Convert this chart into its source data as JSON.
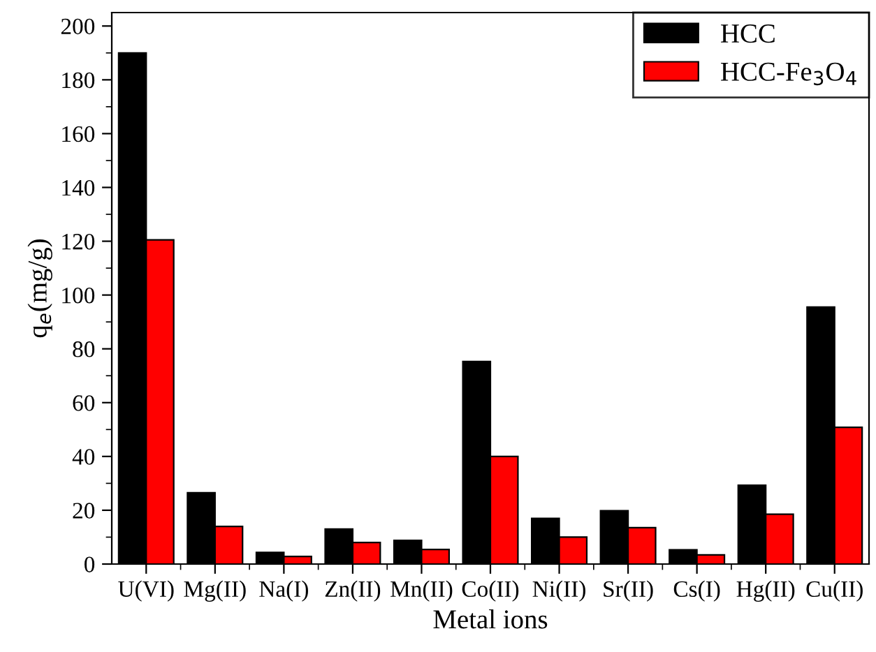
{
  "chart_data": {
    "type": "bar",
    "xlabel": "Metal ions",
    "ylabel": "q$_{e}$(mg/g)",
    "categories": [
      "U(VI)",
      "Mg(II)",
      "Na(I)",
      "Zn(II)",
      "Mn(II)",
      "Co(II)",
      "Ni(II)",
      "Sr(II)",
      "Cs(I)",
      "Hg(II)",
      "Cu(II)"
    ],
    "series": [
      {
        "name": "HCC",
        "color": "#000000",
        "values": [
          190,
          26.5,
          4.3,
          13,
          8.8,
          75.3,
          17,
          19.8,
          5.3,
          29.3,
          95.5
        ]
      },
      {
        "name": "HCC-Fe$_{3}$O$_{4}$",
        "color": "#ff0000",
        "values": [
          120.5,
          14,
          2.8,
          8,
          5.4,
          40,
          10,
          13.5,
          3.4,
          18.5,
          50.8
        ]
      }
    ],
    "ylim": [
      0,
      205
    ],
    "yticks": [
      0,
      20,
      40,
      60,
      80,
      100,
      120,
      140,
      160,
      180,
      200
    ],
    "grid": false,
    "legend": "top right"
  }
}
